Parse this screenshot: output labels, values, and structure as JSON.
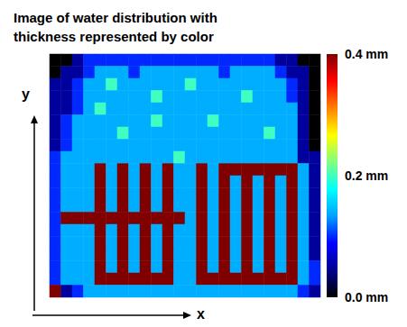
{
  "chart_data": {
    "type": "heatmap",
    "title": "Image of water distribution with thickness represented by color",
    "xlabel": "x",
    "ylabel": "y",
    "tick_labels": false,
    "colorbar": {
      "range": [
        0,
        0.4
      ],
      "ticks": [
        {
          "value": 0,
          "label": "0.0 mm"
        },
        {
          "value": 0.2,
          "label": "0.2 mm"
        },
        {
          "value": 0.4,
          "label": "0.4 mm"
        }
      ]
    },
    "cells": [
      [
        0,
        0,
        0.05,
        0.1,
        0.1,
        0.1,
        0.1,
        0.1,
        0.1,
        0.1,
        0.1,
        0.1,
        0.1,
        0.1,
        0.1,
        0.1,
        0.1,
        0.1,
        0.1,
        0.1,
        0.05,
        0.05,
        0,
        0
      ],
      [
        0,
        0.05,
        0.05,
        0.1,
        0.14,
        0.14,
        0.14,
        0.1,
        0.14,
        0.14,
        0.14,
        0.14,
        0.14,
        0.14,
        0.14,
        0.1,
        0.14,
        0.14,
        0.14,
        0.14,
        0.1,
        0.05,
        0.05,
        0
      ],
      [
        0.05,
        0.05,
        0.1,
        0.14,
        0.14,
        0.2,
        0.14,
        0.14,
        0.14,
        0.14,
        0.14,
        0.14,
        0.2,
        0.14,
        0.14,
        0.14,
        0.14,
        0.14,
        0.14,
        0.14,
        0.14,
        0.1,
        0.05,
        0
      ],
      [
        0.05,
        0.05,
        0.1,
        0.14,
        0.14,
        0.14,
        0.14,
        0.14,
        0.14,
        0.2,
        0.14,
        0.14,
        0.14,
        0.14,
        0.14,
        0.14,
        0.14,
        0.2,
        0.14,
        0.14,
        0.14,
        0.1,
        0.05,
        0
      ],
      [
        0.05,
        0.05,
        0.1,
        0.14,
        0.2,
        0.14,
        0.14,
        0.14,
        0.14,
        0.14,
        0.14,
        0.14,
        0.14,
        0.14,
        0.14,
        0.14,
        0.14,
        0.14,
        0.14,
        0.14,
        0.14,
        0.14,
        0.05,
        0
      ],
      [
        0.05,
        0.1,
        0.14,
        0.14,
        0.14,
        0.14,
        0.14,
        0.14,
        0.14,
        0.2,
        0.14,
        0.14,
        0.14,
        0.14,
        0.2,
        0.14,
        0.14,
        0.14,
        0.14,
        0.14,
        0.14,
        0.14,
        0.05,
        0
      ],
      [
        0.05,
        0.1,
        0.14,
        0.14,
        0.14,
        0.14,
        0.2,
        0.14,
        0.14,
        0.14,
        0.14,
        0.14,
        0.14,
        0.14,
        0.14,
        0.14,
        0.14,
        0.14,
        0.14,
        0.2,
        0.14,
        0.14,
        0.05,
        0
      ],
      [
        0.05,
        0.1,
        0.14,
        0.14,
        0.14,
        0.14,
        0.14,
        0.14,
        0.14,
        0.14,
        0.14,
        0.14,
        0.14,
        0.14,
        0.14,
        0.14,
        0.14,
        0.14,
        0.14,
        0.14,
        0.14,
        0.14,
        0.05,
        0
      ],
      [
        0.1,
        0.14,
        0.14,
        0.14,
        0.14,
        0.14,
        0.14,
        0.14,
        0.14,
        0.14,
        0.14,
        0.2,
        0.14,
        0.14,
        0.14,
        0.14,
        0.14,
        0.14,
        0.14,
        0.14,
        0.14,
        0.14,
        0.05,
        0.05
      ],
      [
        0.1,
        0.14,
        0.14,
        0.14,
        0.4,
        0.14,
        0.4,
        0.14,
        0.4,
        0.14,
        0.4,
        0.14,
        0.14,
        0.4,
        0.14,
        0.4,
        0.4,
        0.4,
        0.4,
        0.4,
        0.4,
        0.4,
        0.14,
        0.05
      ],
      [
        0.1,
        0.14,
        0.14,
        0.14,
        0.4,
        0.14,
        0.4,
        0.14,
        0.4,
        0.14,
        0.4,
        0.14,
        0.14,
        0.4,
        0.14,
        0.4,
        0.14,
        0.4,
        0.14,
        0.4,
        0.14,
        0.4,
        0.14,
        0.05
      ],
      [
        0.1,
        0.14,
        0.14,
        0.14,
        0.4,
        0.14,
        0.4,
        0.14,
        0.4,
        0.14,
        0.4,
        0.14,
        0.14,
        0.4,
        0.14,
        0.4,
        0.14,
        0.4,
        0.14,
        0.4,
        0.14,
        0.4,
        0.14,
        0.05
      ],
      [
        0.1,
        0.14,
        0.14,
        0.14,
        0.4,
        0.14,
        0.4,
        0.14,
        0.4,
        0.14,
        0.4,
        0.14,
        0.14,
        0.4,
        0.14,
        0.4,
        0.14,
        0.4,
        0.14,
        0.4,
        0.14,
        0.4,
        0.14,
        0.05
      ],
      [
        0.1,
        0.4,
        0.4,
        0.4,
        0.4,
        0.4,
        0.4,
        0.4,
        0.4,
        0.4,
        0.4,
        0.4,
        0.14,
        0.4,
        0.14,
        0.4,
        0.14,
        0.4,
        0.14,
        0.4,
        0.14,
        0.4,
        0.14,
        0.05
      ],
      [
        0.1,
        0.14,
        0.14,
        0.14,
        0.4,
        0.14,
        0.4,
        0.14,
        0.4,
        0.14,
        0.4,
        0.14,
        0.14,
        0.4,
        0.14,
        0.4,
        0.14,
        0.4,
        0.14,
        0.4,
        0.14,
        0.4,
        0.14,
        0.05
      ],
      [
        0.1,
        0.14,
        0.14,
        0.14,
        0.4,
        0.14,
        0.4,
        0.14,
        0.4,
        0.14,
        0.4,
        0.14,
        0.14,
        0.4,
        0.14,
        0.4,
        0.14,
        0.4,
        0.14,
        0.4,
        0.14,
        0.4,
        0.14,
        0.05
      ],
      [
        0.1,
        0.14,
        0.14,
        0.14,
        0.4,
        0.14,
        0.4,
        0.14,
        0.4,
        0.14,
        0.4,
        0.14,
        0.14,
        0.4,
        0.14,
        0.4,
        0.14,
        0.4,
        0.14,
        0.4,
        0.14,
        0.4,
        0.14,
        0.05
      ],
      [
        0.1,
        0.14,
        0.14,
        0.14,
        0.4,
        0.14,
        0.4,
        0.14,
        0.4,
        0.14,
        0.4,
        0.14,
        0.14,
        0.4,
        0.14,
        0.4,
        0.14,
        0.4,
        0.14,
        0.4,
        0.14,
        0.4,
        0.14,
        0.1
      ],
      [
        0.1,
        0.14,
        0.14,
        0.14,
        0.4,
        0.4,
        0.4,
        0.4,
        0.4,
        0.4,
        0.4,
        0.14,
        0.14,
        0.4,
        0.4,
        0.4,
        0.4,
        0.4,
        0.4,
        0.4,
        0.4,
        0.4,
        0.14,
        0.1
      ],
      [
        0.4,
        0.05,
        0.1,
        0.14,
        0.14,
        0.14,
        0.14,
        0.14,
        0.14,
        0.14,
        0.14,
        0.14,
        0.14,
        0.14,
        0.14,
        0.14,
        0.14,
        0.14,
        0.14,
        0.14,
        0.14,
        0.14,
        0.1,
        0.05
      ]
    ]
  }
}
